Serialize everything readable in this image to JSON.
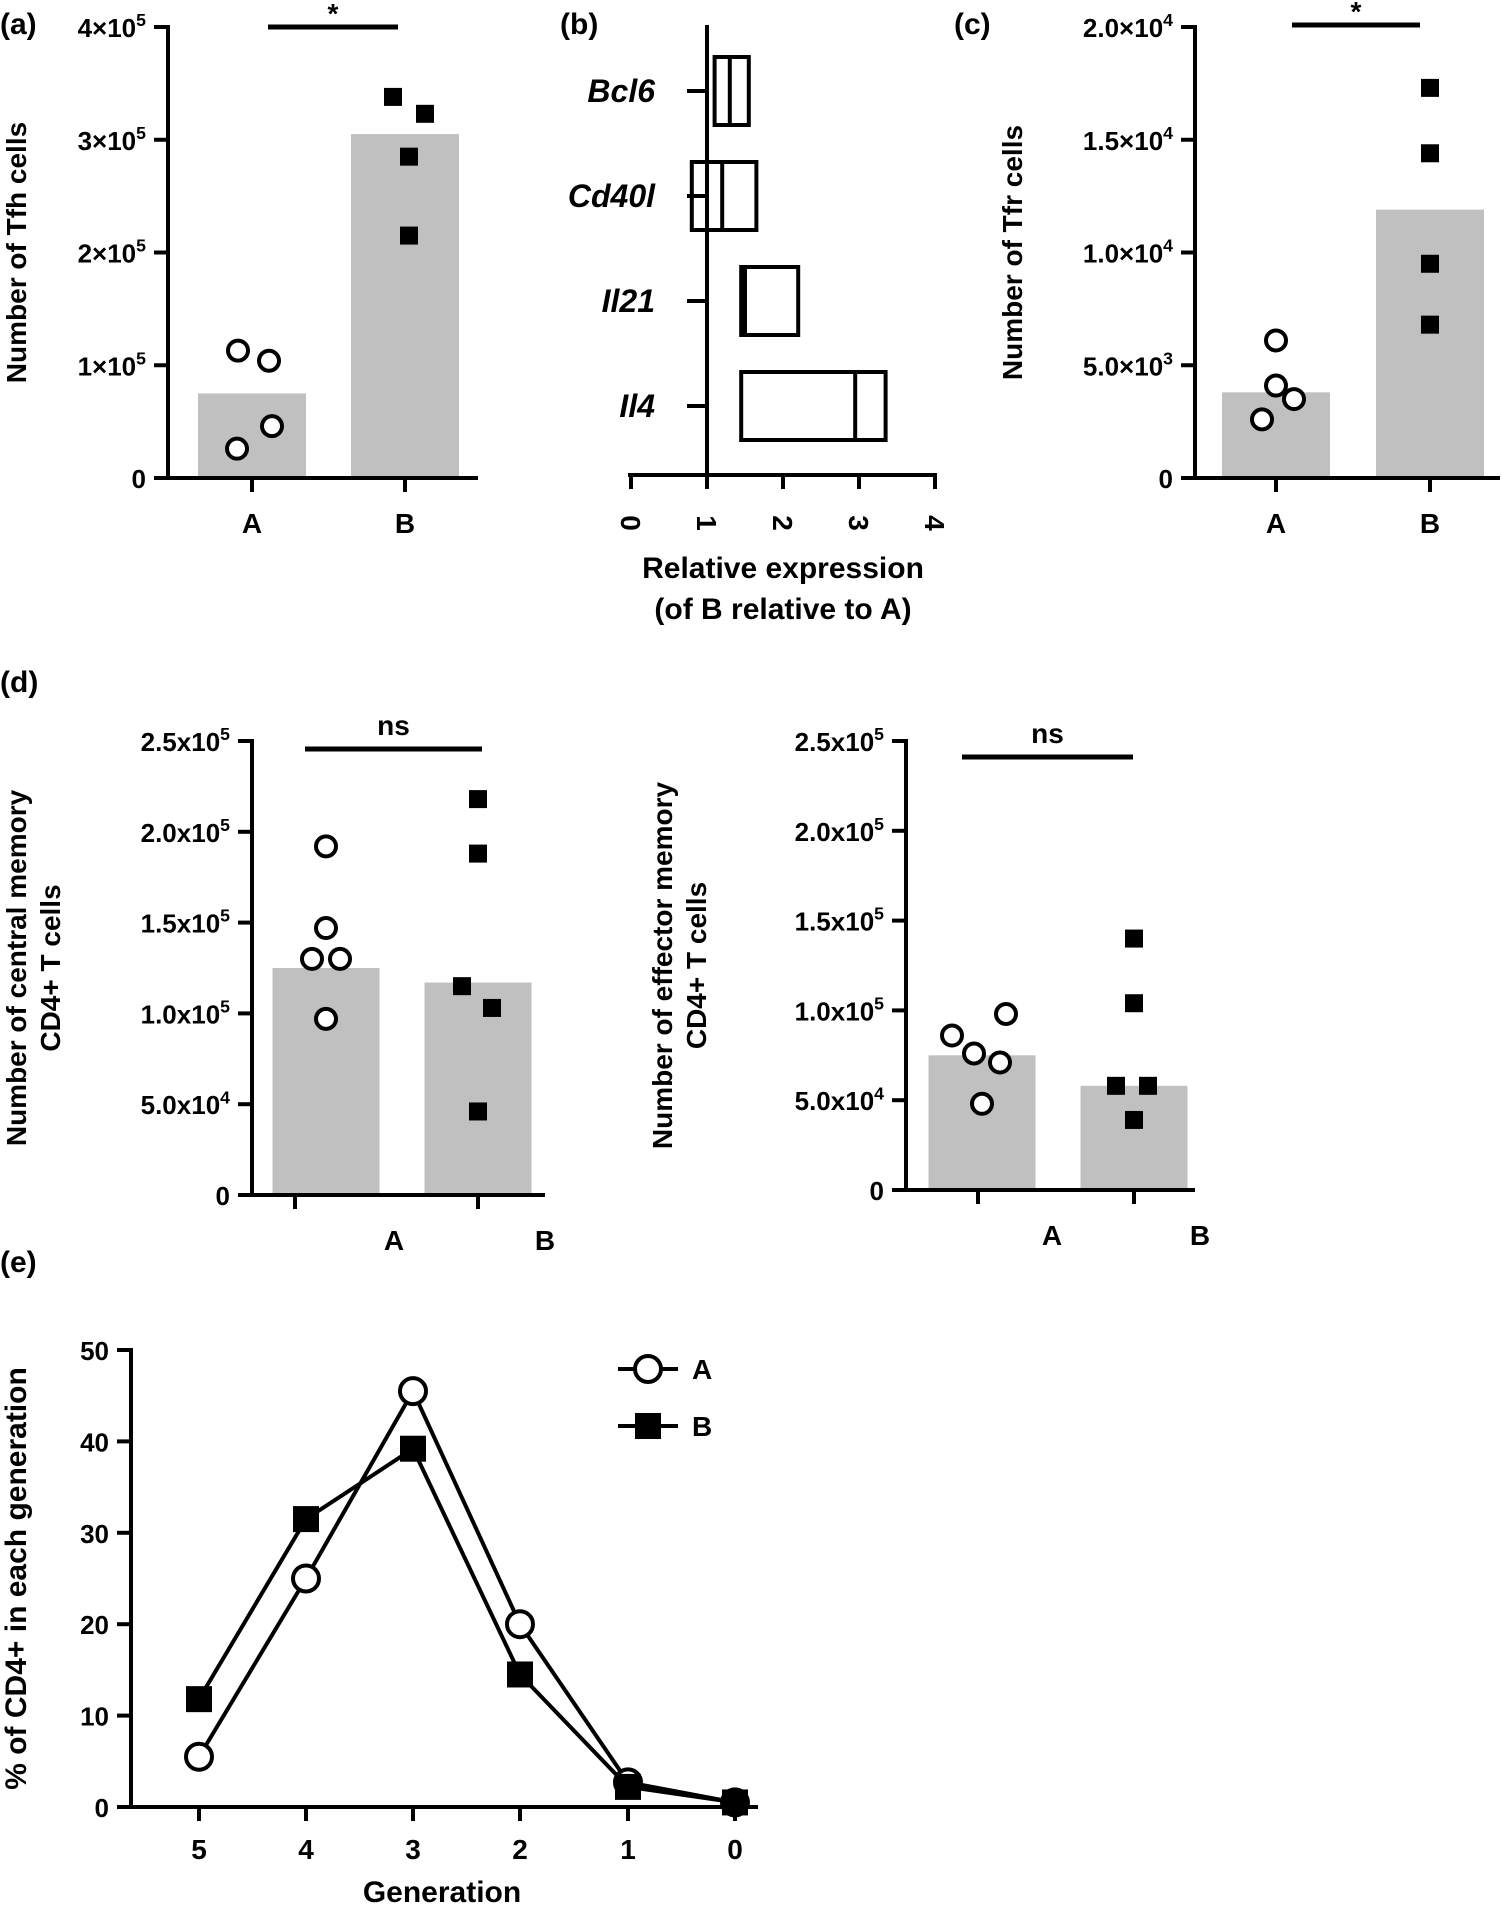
{
  "colors": {
    "bar": "#c0c0c0",
    "ink": "#000000",
    "background": "#ffffff"
  },
  "chart_data": [
    {
      "panel": "(a)",
      "type": "bar",
      "categories": [
        "A",
        "B"
      ],
      "bar_values": [
        75000,
        305000
      ],
      "points": [
        {
          "group": "A",
          "marker": "open-circle",
          "values": [
            113000,
            104000,
            46000,
            26000
          ]
        },
        {
          "group": "B",
          "marker": "filled-square",
          "values": [
            338000,
            323000,
            285000,
            215000
          ]
        }
      ],
      "ylabel": "Number of Tfh cells",
      "ylim": [
        0,
        400000
      ],
      "yticks": [
        {
          "value": 0,
          "label": "0"
        },
        {
          "value": 100000,
          "label": "1×10^5"
        },
        {
          "value": 200000,
          "label": "2×10^5"
        },
        {
          "value": 300000,
          "label": "3×10^5"
        },
        {
          "value": 400000,
          "label": "4×10^5"
        }
      ],
      "significance": "*"
    },
    {
      "panel": "(b)",
      "type": "box",
      "orientation": "horizontal",
      "genes": [
        "Bcl6",
        "Cd40l",
        "Il21",
        "Il4"
      ],
      "boxes": [
        {
          "gene": "Bcl6",
          "min": 1.1,
          "median": 1.3,
          "max": 1.55
        },
        {
          "gene": "Cd40l",
          "min": 0.8,
          "median": 1.2,
          "max": 1.65
        },
        {
          "gene": "Il21",
          "min": 1.45,
          "median": 1.5,
          "max": 2.2
        },
        {
          "gene": "Il4",
          "min": 1.45,
          "median": 2.95,
          "max": 3.35
        }
      ],
      "xlim": [
        0,
        4
      ],
      "xticks": [
        "0",
        "1",
        "2",
        "3",
        "4"
      ],
      "xlabel": "Relative expression",
      "xlabel2": "(of B relative to A)"
    },
    {
      "panel": "(c)",
      "type": "bar",
      "categories": [
        "A",
        "B"
      ],
      "bar_values": [
        3800,
        11900
      ],
      "points": [
        {
          "group": "A",
          "marker": "open-circle",
          "values": [
            6100,
            4100,
            3500,
            2600
          ]
        },
        {
          "group": "B",
          "marker": "filled-square",
          "values": [
            17300,
            14400,
            9500,
            6800
          ]
        }
      ],
      "ylabel": "Number of  Tfr cells",
      "ylim": [
        0,
        20000
      ],
      "yticks": [
        {
          "value": 0,
          "label": "0"
        },
        {
          "value": 5000,
          "label": "5.0×10^3"
        },
        {
          "value": 10000,
          "label": "1.0×10^4"
        },
        {
          "value": 15000,
          "label": "1.5×10^4"
        },
        {
          "value": 20000,
          "label": "2.0×10^4"
        }
      ],
      "significance": "*"
    },
    {
      "panel": "(d)",
      "type": "bar",
      "categories": [
        "A",
        "B"
      ],
      "bar_values": [
        125000,
        117000
      ],
      "points": [
        {
          "group": "A",
          "marker": "open-circle",
          "values": [
            192000,
            147000,
            130000,
            130000,
            97000
          ]
        },
        {
          "group": "B",
          "marker": "filled-square",
          "values": [
            218000,
            188000,
            115000,
            103000,
            46000
          ]
        }
      ],
      "ylabel": "Number of central memory",
      "ylabel2": "CD4+ T cells",
      "ylim": [
        0,
        250000
      ],
      "yticks": [
        {
          "value": 0,
          "label": "0"
        },
        {
          "value": 50000,
          "label": "5.0x10^4"
        },
        {
          "value": 100000,
          "label": "1.0x10^5"
        },
        {
          "value": 150000,
          "label": "1.5x10^5"
        },
        {
          "value": 200000,
          "label": "2.0x10^5"
        },
        {
          "value": 250000,
          "label": "2.5x10^5"
        }
      ],
      "significance": "ns"
    },
    {
      "type": "bar",
      "categories": [
        "A",
        "B"
      ],
      "bar_values": [
        75000,
        58000
      ],
      "points": [
        {
          "group": "A",
          "marker": "open-circle",
          "values": [
            98000,
            86000,
            76000,
            71000,
            48000
          ]
        },
        {
          "group": "B",
          "marker": "filled-square",
          "values": [
            140000,
            104000,
            58000,
            58000,
            39000
          ]
        }
      ],
      "ylabel": "Number of effector memory",
      "ylabel2": "CD4+ T cells",
      "ylim": [
        0,
        250000
      ],
      "yticks": [
        {
          "value": 0,
          "label": "0"
        },
        {
          "value": 50000,
          "label": "5.0x10^4"
        },
        {
          "value": 100000,
          "label": "1.0x10^5"
        },
        {
          "value": 150000,
          "label": "1.5x10^5"
        },
        {
          "value": 200000,
          "label": "2.0x10^5"
        },
        {
          "value": 250000,
          "label": "2.5x10^5"
        }
      ],
      "significance": "ns"
    },
    {
      "panel": "(e)",
      "type": "line",
      "x": [
        "5",
        "4",
        "3",
        "2",
        "1",
        "0"
      ],
      "series": [
        {
          "name": "A",
          "marker": "open-circle",
          "values": [
            5.5,
            25,
            45.5,
            20,
            2.7,
            0.5
          ]
        },
        {
          "name": "B",
          "marker": "filled-square",
          "values": [
            11.8,
            31.5,
            39.2,
            14.5,
            2.2,
            0.5
          ]
        }
      ],
      "xlabel": "Generation",
      "ylabel": "% of CD4+ in each generation",
      "ylim": [
        0,
        50
      ],
      "yticks": [
        "0",
        "10",
        "20",
        "30",
        "40",
        "50"
      ],
      "legend": "top-right"
    }
  ]
}
